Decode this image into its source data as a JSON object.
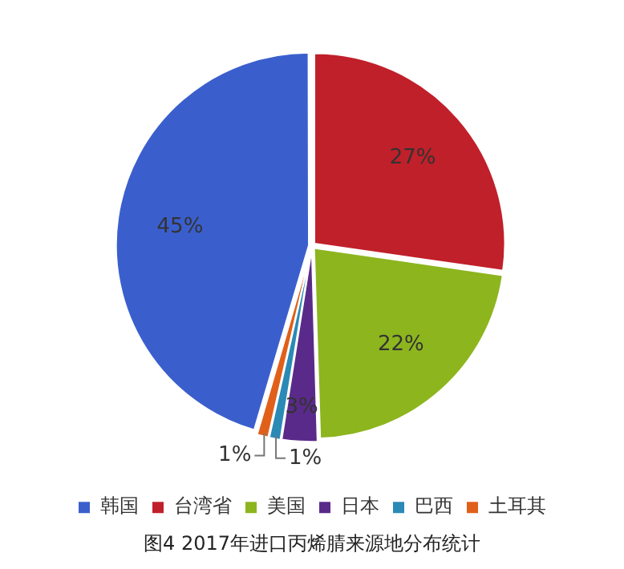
{
  "chart_data": {
    "type": "pie",
    "title": "图4 2017年进口丙烯腈来源地分布统计",
    "categories": [
      "韩国",
      "台湾省",
      "美国",
      "日本",
      "巴西",
      "土耳其"
    ],
    "values": [
      45,
      27,
      22,
      3,
      1,
      1
    ],
    "value_labels": [
      "45%",
      "27%",
      "22%",
      "3%",
      "1%",
      "1%"
    ],
    "colors": [
      "#3a5fcd",
      "#c0202a",
      "#8db51e",
      "#5a2a8a",
      "#2a8ab5",
      "#e0601a"
    ],
    "legend": "bottom"
  }
}
